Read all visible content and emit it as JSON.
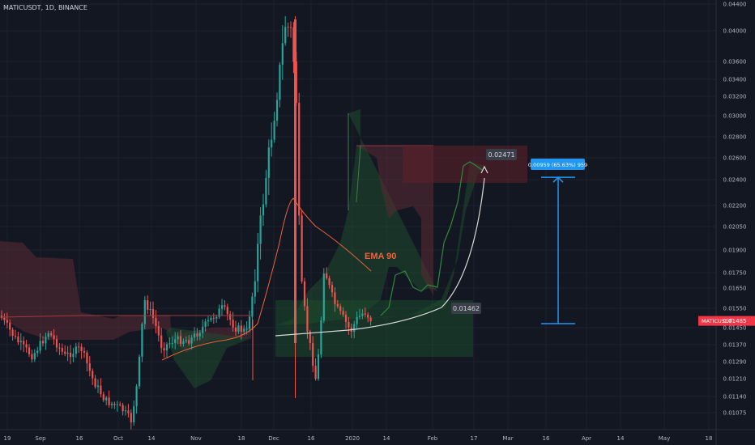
{
  "symbol_line": "MATICUSDT, 1D, BINANCE",
  "colors": {
    "background": "#131722",
    "up": "#26a69a",
    "down": "#ef5350",
    "ema": "#f0623a",
    "cloud_red": "#5b2a33",
    "cloud_green": "#1f4a2f",
    "price_tag": "#f23645",
    "measure": "#2196f3"
  },
  "price_tag": "MATICUSDT",
  "price_tag_value": "0.01485",
  "annotations": {
    "ema_label": "EMA 90",
    "target_label": "0.02471",
    "entry_label": "0.01462",
    "measure_label": "0.00959 (65.63%) 959"
  },
  "chart_data": {
    "type": "candlestick",
    "title": "",
    "yaxis_ticks": [
      "0.04400",
      "0.04000",
      "0.03600",
      "0.03400",
      "0.03200",
      "0.03000",
      "0.02800",
      "0.02600",
      "0.02400",
      "0.02200",
      "0.02050",
      "0.01900",
      "0.01750",
      "0.01650",
      "0.01550",
      "0.01450",
      "0.01370",
      "0.01290",
      "0.01210",
      "0.01140",
      "0.01075"
    ],
    "xaxis_ticks": [
      "19",
      "Sep",
      "16",
      "Oct",
      "14",
      "Nov",
      "18",
      "Dec",
      "16",
      "2020",
      "14",
      "Feb",
      "17",
      "Mar",
      "16",
      "Apr",
      "14",
      "May",
      "18"
    ],
    "ylim": [
      0.0101,
      0.044
    ],
    "yscale": "log",
    "series": [
      {
        "name": "EMA 90",
        "type": "line"
      }
    ],
    "key_levels": {
      "target": 0.02471,
      "entry": 0.01462,
      "last": 0.01485
    },
    "measure": {
      "from": 0.01462,
      "to": 0.02421,
      "change": 0.00959,
      "percent": 65.63
    }
  }
}
